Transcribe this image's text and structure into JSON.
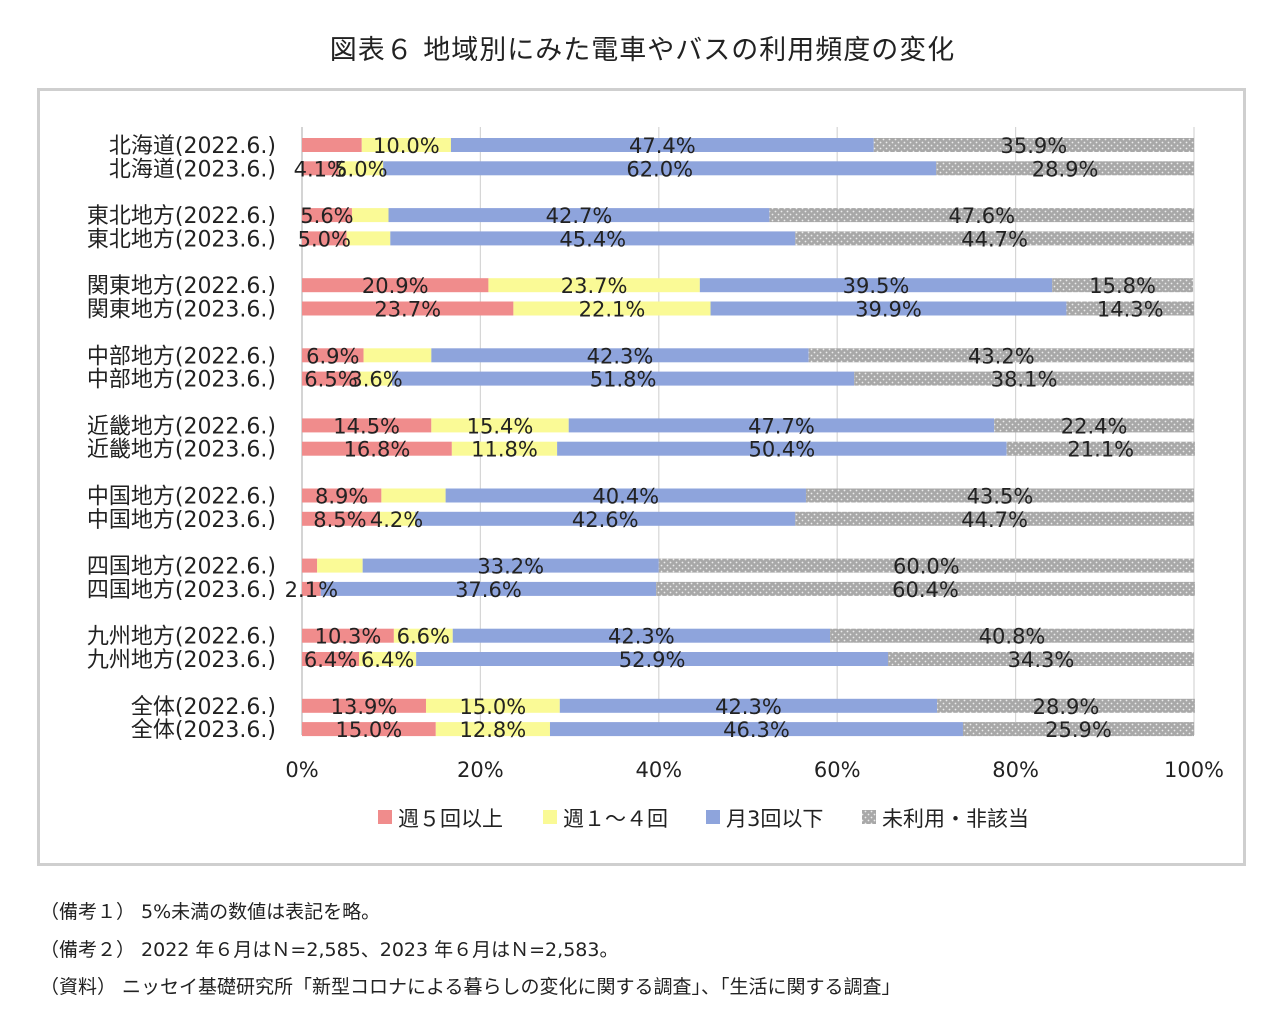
{
  "title": "図表６ 地域別にみた電車やバスの利用頻度の変化",
  "notes": [
    "（備考１） 5%未満の数値は表記を略。",
    "（備考２） 2022 年６月はＮ=2,585、2023 年６月はＮ=2,583。",
    "（資料） ニッセイ基礎研究所「新型コロナによる暮らしの変化に関する調査」、「生活に関する調査」"
  ],
  "chart_data": {
    "type": "bar",
    "orientation": "horizontal",
    "stacked": "percent",
    "xlim": [
      0,
      100
    ],
    "x_ticks": [
      "0%",
      "20%",
      "40%",
      "60%",
      "80%",
      "100%"
    ],
    "grid": true,
    "legend_position": "bottom",
    "label_threshold": 5,
    "categories": [
      "北海道(2022.6.)",
      "北海道(2023.6.)",
      "東北地方(2022.6.)",
      "東北地方(2023.6.)",
      "関東地方(2022.6.)",
      "関東地方(2023.6.)",
      "中部地方(2022.6.)",
      "中部地方(2023.6.)",
      "近畿地方(2022.6.)",
      "近畿地方(2023.6.)",
      "中国地方(2022.6.)",
      "中国地方(2023.6.)",
      "四国地方(2022.6.)",
      "四国地方(2023.6.)",
      "九州地方(2022.6.)",
      "九州地方(2023.6.)",
      "全体(2022.6.)",
      "全体(2023.6.)"
    ],
    "series": [
      {
        "name": "週５回以上",
        "color": "#f08c8c",
        "values": [
          6.7,
          4.1,
          5.6,
          5.0,
          20.9,
          23.7,
          6.9,
          6.5,
          14.5,
          16.8,
          8.9,
          8.5,
          1.7,
          2.1,
          10.3,
          6.4,
          13.9,
          15.0
        ],
        "labels": [
          "",
          "4.1%",
          "5.6%",
          "5.0%",
          "20.9%",
          "23.7%",
          "6.9%",
          "6.5%",
          "14.5%",
          "16.8%",
          "8.9%",
          "8.5%",
          "",
          "2.1%",
          "10.3%",
          "6.4%",
          "13.9%",
          "15.0%"
        ]
      },
      {
        "name": "週１～４回",
        "color": "#fafa96",
        "values": [
          10.0,
          5.0,
          4.1,
          4.9,
          23.7,
          22.1,
          7.6,
          3.6,
          15.4,
          11.8,
          7.2,
          4.2,
          5.1,
          0,
          6.6,
          6.4,
          15.0,
          12.8
        ],
        "labels": [
          "10.0%",
          "5.0%",
          "",
          "",
          "23.7%",
          "22.1%",
          "",
          "3.6%",
          "15.4%",
          "11.8%",
          "",
          "4.2%",
          "",
          "",
          "6.6%",
          "6.4%",
          "15.0%",
          "12.8%"
        ]
      },
      {
        "name": "月3回以下",
        "color": "#8ea4dc",
        "values": [
          47.4,
          62.0,
          42.7,
          45.4,
          39.5,
          39.9,
          42.3,
          51.8,
          47.7,
          50.4,
          40.4,
          42.6,
          33.2,
          37.6,
          42.3,
          52.9,
          42.3,
          46.3
        ],
        "labels": [
          "47.4%",
          "62.0%",
          "42.7%",
          "45.4%",
          "39.5%",
          "39.9%",
          "42.3%",
          "51.8%",
          "47.7%",
          "50.4%",
          "40.4%",
          "42.6%",
          "33.2%",
          "37.6%",
          "42.3%",
          "52.9%",
          "42.3%",
          "46.3%"
        ]
      },
      {
        "name": "未利用・非該当",
        "color": "#a8a8a8",
        "values": [
          35.9,
          28.9,
          47.6,
          44.7,
          15.8,
          14.3,
          43.2,
          38.1,
          22.4,
          21.1,
          43.5,
          44.7,
          60.0,
          60.4,
          40.8,
          34.3,
          28.9,
          25.9
        ],
        "labels": [
          "35.9%",
          "28.9%",
          "47.6%",
          "44.7%",
          "15.8%",
          "14.3%",
          "43.2%",
          "38.1%",
          "22.4%",
          "21.1%",
          "43.5%",
          "44.7%",
          "60.0%",
          "60.4%",
          "40.8%",
          "34.3%",
          "28.9%",
          "25.9%"
        ]
      }
    ]
  }
}
